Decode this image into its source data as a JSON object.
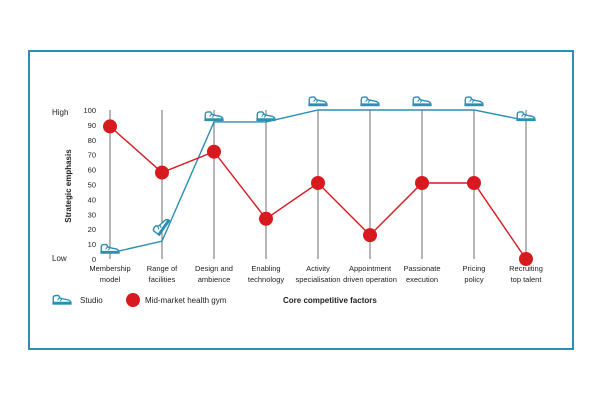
{
  "chart_data": {
    "type": "line",
    "categories": [
      [
        "Membership",
        "model"
      ],
      [
        "Range of",
        "facilities"
      ],
      [
        "Design and",
        "ambience"
      ],
      [
        "Enabling",
        "technology"
      ],
      [
        "Activity",
        "specialisation"
      ],
      [
        "Appointment",
        "driven operation"
      ],
      [
        "Passionate",
        "execution"
      ],
      [
        "Pricing",
        "policy"
      ],
      [
        "Recruiting",
        "top talent"
      ]
    ],
    "ylabel": "Strategic emphasis",
    "xlabel": "Core competitive factors",
    "ylim": [
      0,
      100
    ],
    "yticks": [
      0,
      10,
      20,
      30,
      40,
      50,
      60,
      70,
      80,
      90,
      100
    ],
    "y_level_labels": {
      "high": "High",
      "low": "Low"
    },
    "grid": "vertical lines per category",
    "legend_position": "bottom-left",
    "series": [
      {
        "name": "Studio",
        "marker": "sneaker-icon",
        "color": "#2a8fb0",
        "values": [
          4,
          12,
          92,
          92,
          100,
          100,
          100,
          100,
          93
        ],
        "icon_values": [
          6,
          22,
          95,
          95,
          105,
          105,
          105,
          105,
          95
        ]
      },
      {
        "name": "Mid-market health gym",
        "marker": "circle",
        "color": "#d71920",
        "values": [
          89,
          58,
          72,
          27,
          51,
          16,
          51,
          51,
          0
        ]
      }
    ]
  }
}
